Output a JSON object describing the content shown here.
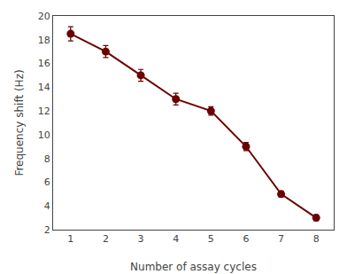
{
  "chart_data": {
    "type": "line",
    "x": [
      1,
      2,
      3,
      4,
      5,
      6,
      7,
      8
    ],
    "values": [
      18.5,
      17.0,
      15.0,
      13.0,
      12.0,
      9.0,
      5.0,
      3.0
    ],
    "yerr": [
      0.6,
      0.5,
      0.5,
      0.5,
      0.35,
      0.35,
      0.25,
      0.25
    ],
    "color": "#6B0000",
    "marker": "circle",
    "xlabel": "Number of assay cycles",
    "ylabel": "Frequency shift (Hz)",
    "xlim": [
      0.5,
      8.5
    ],
    "ylim": [
      2,
      20
    ],
    "xticks": [
      1,
      2,
      3,
      4,
      5,
      6,
      7,
      8
    ],
    "yticks": [
      2,
      4,
      6,
      8,
      10,
      12,
      14,
      16,
      18,
      20
    ],
    "grid": false
  }
}
